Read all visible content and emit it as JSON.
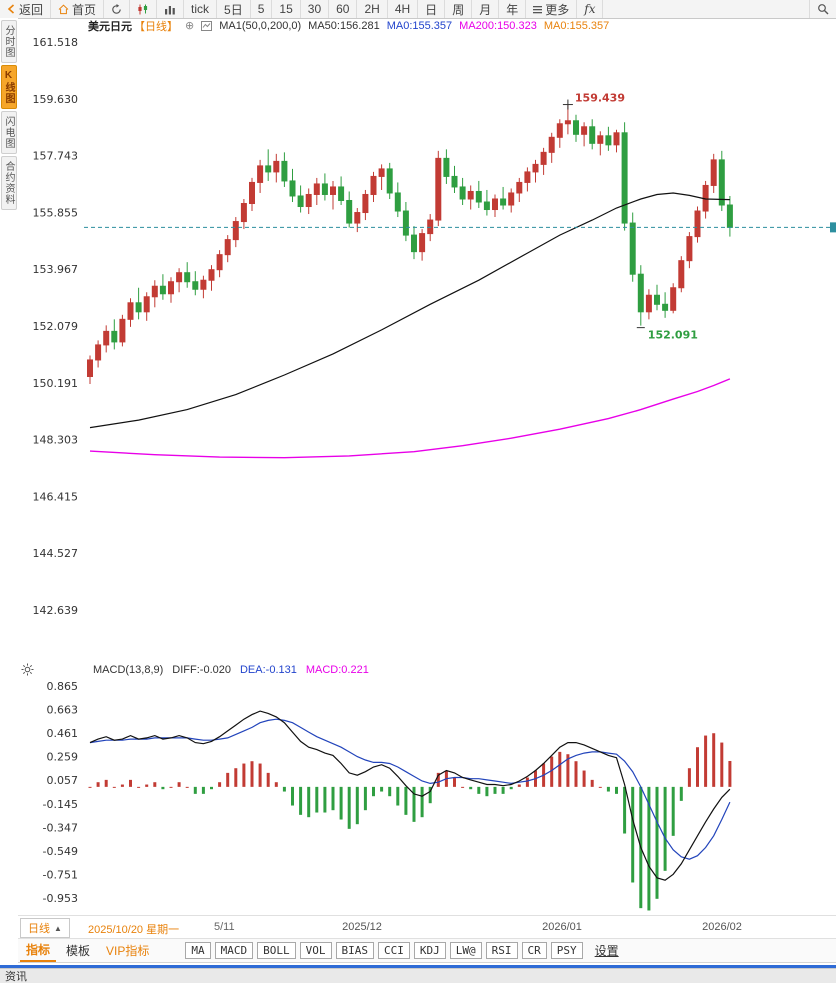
{
  "toolbar": {
    "back": "返回",
    "home": "首页",
    "tick": "tick",
    "d5": "5日",
    "m5": "5",
    "m15": "15",
    "m30": "30",
    "m60": "60",
    "h2": "2H",
    "h4": "4H",
    "day": "日",
    "week": "周",
    "month": "月",
    "year": "年",
    "more": "更多",
    "fx": "fx"
  },
  "sidebar": {
    "items": [
      "分时图",
      "K线图",
      "闪电图",
      "合约资料"
    ]
  },
  "chart_header": {
    "symbol": "美元日元",
    "period": "【日线】",
    "ma_group": "MA1(50,0,200,0)",
    "ma50_label": "MA50:156.281",
    "ma0_blue_label": "MA0:155.357",
    "ma200_label": "MA200:150.323",
    "ma0_orange_label": "MA0:155.357"
  },
  "macd_header": {
    "title": "MACD(13,8,9)",
    "diff_label": "DIFF:-0.020",
    "dea_label": "DEA:-0.131",
    "macd_label": "MACD:0.221"
  },
  "bottom": {
    "period": "日线",
    "date": "2025/10/20 星期一",
    "page": "5/11"
  },
  "tabs": {
    "indicator": "指标",
    "template": "模板",
    "vip": "VIP指标",
    "buttons": [
      "MA",
      "MACD",
      "BOLL",
      "VOL",
      "BIAS",
      "CCI",
      "KDJ",
      "LW@",
      "RSI",
      "CR",
      "PSY"
    ],
    "settings": "设置"
  },
  "statusbar": {
    "news": "资讯"
  },
  "colors": {
    "up": "#c23b34",
    "down": "#2f9e41",
    "ma50": "#111111",
    "ma200": "#e800e8",
    "diff_line": "#111111",
    "dea_line": "#2244bb",
    "dashed": "#2d8f9f",
    "accent": "#e8820c"
  },
  "chart_data": [
    {
      "type": "candlestick",
      "title": "美元日元 日线",
      "price_max": 161.518,
      "price_min": 142.639,
      "last_price": 155.357,
      "y_ticks": [
        161.518,
        159.63,
        157.743,
        155.855,
        153.967,
        152.079,
        150.191,
        148.303,
        146.415,
        144.527,
        142.639
      ],
      "x_axis_labels": [
        {
          "label": "2025/12",
          "x": 344
        },
        {
          "label": "2026/01",
          "x": 544
        },
        {
          "label": "2026/02",
          "x": 704
        }
      ],
      "high_annotation": {
        "index": 59,
        "price": 159.439,
        "label": "159.439"
      },
      "low_annotation": {
        "index": 68,
        "price": 152.091,
        "label": "152.091"
      },
      "candles": [
        [
          150.4,
          151.1,
          150.15,
          150.95
        ],
        [
          150.95,
          151.6,
          150.7,
          151.45
        ],
        [
          151.45,
          152.1,
          151.2,
          151.9
        ],
        [
          151.9,
          152.3,
          151.3,
          151.55
        ],
        [
          151.55,
          152.45,
          151.4,
          152.3
        ],
        [
          152.3,
          153.0,
          152.05,
          152.85
        ],
        [
          152.85,
          153.35,
          152.3,
          152.55
        ],
        [
          152.55,
          153.2,
          152.25,
          153.05
        ],
        [
          153.05,
          153.6,
          152.7,
          153.4
        ],
        [
          153.4,
          153.8,
          152.95,
          153.15
        ],
        [
          153.15,
          153.7,
          152.85,
          153.55
        ],
        [
          153.55,
          154.0,
          153.2,
          153.85
        ],
        [
          153.85,
          154.2,
          153.35,
          153.55
        ],
        [
          153.55,
          153.9,
          153.1,
          153.3
        ],
        [
          153.3,
          153.75,
          153.0,
          153.6
        ],
        [
          153.6,
          154.1,
          153.25,
          153.95
        ],
        [
          153.95,
          154.6,
          153.7,
          154.45
        ],
        [
          154.45,
          155.1,
          154.2,
          154.95
        ],
        [
          154.95,
          155.7,
          154.7,
          155.55
        ],
        [
          155.55,
          156.3,
          155.3,
          156.15
        ],
        [
          156.15,
          157.0,
          155.9,
          156.85
        ],
        [
          156.85,
          157.6,
          156.5,
          157.4
        ],
        [
          157.4,
          157.95,
          156.9,
          157.2
        ],
        [
          157.2,
          157.8,
          156.85,
          157.55
        ],
        [
          157.55,
          157.85,
          156.7,
          156.9
        ],
        [
          156.9,
          157.3,
          156.2,
          156.4
        ],
        [
          156.4,
          156.75,
          155.85,
          156.05
        ],
        [
          156.05,
          156.65,
          155.8,
          156.45
        ],
        [
          156.45,
          157.0,
          156.1,
          156.8
        ],
        [
          156.8,
          157.15,
          156.25,
          156.45
        ],
        [
          156.45,
          156.9,
          155.95,
          156.7
        ],
        [
          156.7,
          157.05,
          156.1,
          156.25
        ],
        [
          156.25,
          156.55,
          155.35,
          155.5
        ],
        [
          155.5,
          156.0,
          155.2,
          155.85
        ],
        [
          155.85,
          156.6,
          155.6,
          156.45
        ],
        [
          156.45,
          157.2,
          156.2,
          157.05
        ],
        [
          157.05,
          157.45,
          156.6,
          157.3
        ],
        [
          157.3,
          157.5,
          156.3,
          156.5
        ],
        [
          156.5,
          156.85,
          155.7,
          155.9
        ],
        [
          155.9,
          156.2,
          154.9,
          155.1
        ],
        [
          155.1,
          155.4,
          154.3,
          154.55
        ],
        [
          154.55,
          155.3,
          154.25,
          155.15
        ],
        [
          155.15,
          155.8,
          154.9,
          155.6
        ],
        [
          155.6,
          157.9,
          155.4,
          157.65
        ],
        [
          157.65,
          157.95,
          156.8,
          157.05
        ],
        [
          157.05,
          157.4,
          156.5,
          156.7
        ],
        [
          156.7,
          157.0,
          156.1,
          156.3
        ],
        [
          156.3,
          156.75,
          155.95,
          156.55
        ],
        [
          156.55,
          156.9,
          156.0,
          156.2
        ],
        [
          156.2,
          156.6,
          155.75,
          155.95
        ],
        [
          155.95,
          156.45,
          155.7,
          156.3
        ],
        [
          156.3,
          156.7,
          155.95,
          156.1
        ],
        [
          156.1,
          156.65,
          155.85,
          156.5
        ],
        [
          156.5,
          157.0,
          156.2,
          156.85
        ],
        [
          156.85,
          157.35,
          156.55,
          157.2
        ],
        [
          157.2,
          157.6,
          156.85,
          157.45
        ],
        [
          157.45,
          158.0,
          157.1,
          157.85
        ],
        [
          157.85,
          158.5,
          157.5,
          158.35
        ],
        [
          158.35,
          158.95,
          158.0,
          158.8
        ],
        [
          158.8,
          159.439,
          158.45,
          158.9
        ],
        [
          158.9,
          159.1,
          158.2,
          158.45
        ],
        [
          158.45,
          158.85,
          158.05,
          158.7
        ],
        [
          158.7,
          158.95,
          157.95,
          158.15
        ],
        [
          158.15,
          158.55,
          157.75,
          158.4
        ],
        [
          158.4,
          158.7,
          157.9,
          158.1
        ],
        [
          158.1,
          158.6,
          157.85,
          158.5
        ],
        [
          158.5,
          158.85,
          155.25,
          155.5
        ],
        [
          155.5,
          155.85,
          153.55,
          153.8
        ],
        [
          153.8,
          154.1,
          152.091,
          152.55
        ],
        [
          152.55,
          153.3,
          152.3,
          153.1
        ],
        [
          153.1,
          153.45,
          152.6,
          152.8
        ],
        [
          152.8,
          153.2,
          152.35,
          152.6
        ],
        [
          152.6,
          153.5,
          152.5,
          153.35
        ],
        [
          153.35,
          154.4,
          153.2,
          154.25
        ],
        [
          154.25,
          155.2,
          154.0,
          155.05
        ],
        [
          155.05,
          156.05,
          154.85,
          155.9
        ],
        [
          155.9,
          156.9,
          155.65,
          156.75
        ],
        [
          156.75,
          157.8,
          156.5,
          157.6
        ],
        [
          157.6,
          157.9,
          155.9,
          156.1
        ],
        [
          156.1,
          156.4,
          155.05,
          155.357
        ]
      ],
      "ma50_points": [
        [
          0,
          148.7
        ],
        [
          6,
          148.95
        ],
        [
          12,
          149.3
        ],
        [
          18,
          149.8
        ],
        [
          24,
          150.45
        ],
        [
          30,
          151.15
        ],
        [
          36,
          151.95
        ],
        [
          42,
          152.8
        ],
        [
          48,
          153.6
        ],
        [
          54,
          154.5
        ],
        [
          58,
          155.1
        ],
        [
          62,
          155.6
        ],
        [
          65,
          156.0
        ],
        [
          68,
          156.3
        ],
        [
          70,
          156.45
        ],
        [
          72,
          156.5
        ],
        [
          74,
          156.42
        ],
        [
          76,
          156.3
        ],
        [
          79,
          156.28
        ]
      ],
      "ma200_points": [
        [
          0,
          147.92
        ],
        [
          8,
          147.8
        ],
        [
          16,
          147.72
        ],
        [
          24,
          147.7
        ],
        [
          32,
          147.76
        ],
        [
          40,
          147.9
        ],
        [
          46,
          148.1
        ],
        [
          52,
          148.35
        ],
        [
          58,
          148.65
        ],
        [
          64,
          149.0
        ],
        [
          68,
          149.3
        ],
        [
          72,
          149.65
        ],
        [
          75,
          149.9
        ],
        [
          77,
          150.1
        ],
        [
          79,
          150.32
        ]
      ]
    },
    {
      "type": "macd",
      "params": "MACD(13,8,9)",
      "y_ticks": [
        0.865,
        0.663,
        0.461,
        0.259,
        0.057,
        -0.145,
        -0.347,
        -0.549,
        -0.751,
        -0.953
      ],
      "diff": [
        0.38,
        0.41,
        0.43,
        0.4,
        0.41,
        0.44,
        0.41,
        0.42,
        0.44,
        0.41,
        0.42,
        0.44,
        0.42,
        0.38,
        0.37,
        0.39,
        0.43,
        0.48,
        0.53,
        0.58,
        0.62,
        0.65,
        0.63,
        0.6,
        0.55,
        0.47,
        0.39,
        0.34,
        0.32,
        0.29,
        0.27,
        0.2,
        0.12,
        0.1,
        0.13,
        0.17,
        0.19,
        0.16,
        0.09,
        0.01,
        -0.06,
        -0.08,
        -0.04,
        0.1,
        0.14,
        0.12,
        0.08,
        0.06,
        0.04,
        0.02,
        0.02,
        0.01,
        0.02,
        0.05,
        0.09,
        0.14,
        0.2,
        0.27,
        0.34,
        0.38,
        0.38,
        0.36,
        0.33,
        0.3,
        0.27,
        0.25,
        0.02,
        -0.28,
        -0.52,
        -0.68,
        -0.78,
        -0.8,
        -0.75,
        -0.66,
        -0.54,
        -0.42,
        -0.3,
        -0.19,
        -0.09,
        -0.02
      ],
      "dea": [
        0.38,
        0.39,
        0.4,
        0.4,
        0.4,
        0.41,
        0.41,
        0.41,
        0.42,
        0.42,
        0.42,
        0.42,
        0.42,
        0.41,
        0.4,
        0.4,
        0.41,
        0.42,
        0.45,
        0.48,
        0.51,
        0.55,
        0.57,
        0.58,
        0.57,
        0.55,
        0.51,
        0.47,
        0.43,
        0.4,
        0.37,
        0.34,
        0.3,
        0.26,
        0.23,
        0.21,
        0.21,
        0.2,
        0.17,
        0.13,
        0.09,
        0.05,
        0.03,
        0.04,
        0.07,
        0.08,
        0.08,
        0.07,
        0.07,
        0.06,
        0.05,
        0.04,
        0.03,
        0.04,
        0.05,
        0.07,
        0.1,
        0.14,
        0.19,
        0.24,
        0.27,
        0.29,
        0.3,
        0.3,
        0.29,
        0.28,
        0.22,
        0.13,
        0.0,
        -0.15,
        -0.3,
        -0.44,
        -0.54,
        -0.6,
        -0.62,
        -0.59,
        -0.52,
        -0.42,
        -0.28,
        -0.131
      ]
    }
  ]
}
